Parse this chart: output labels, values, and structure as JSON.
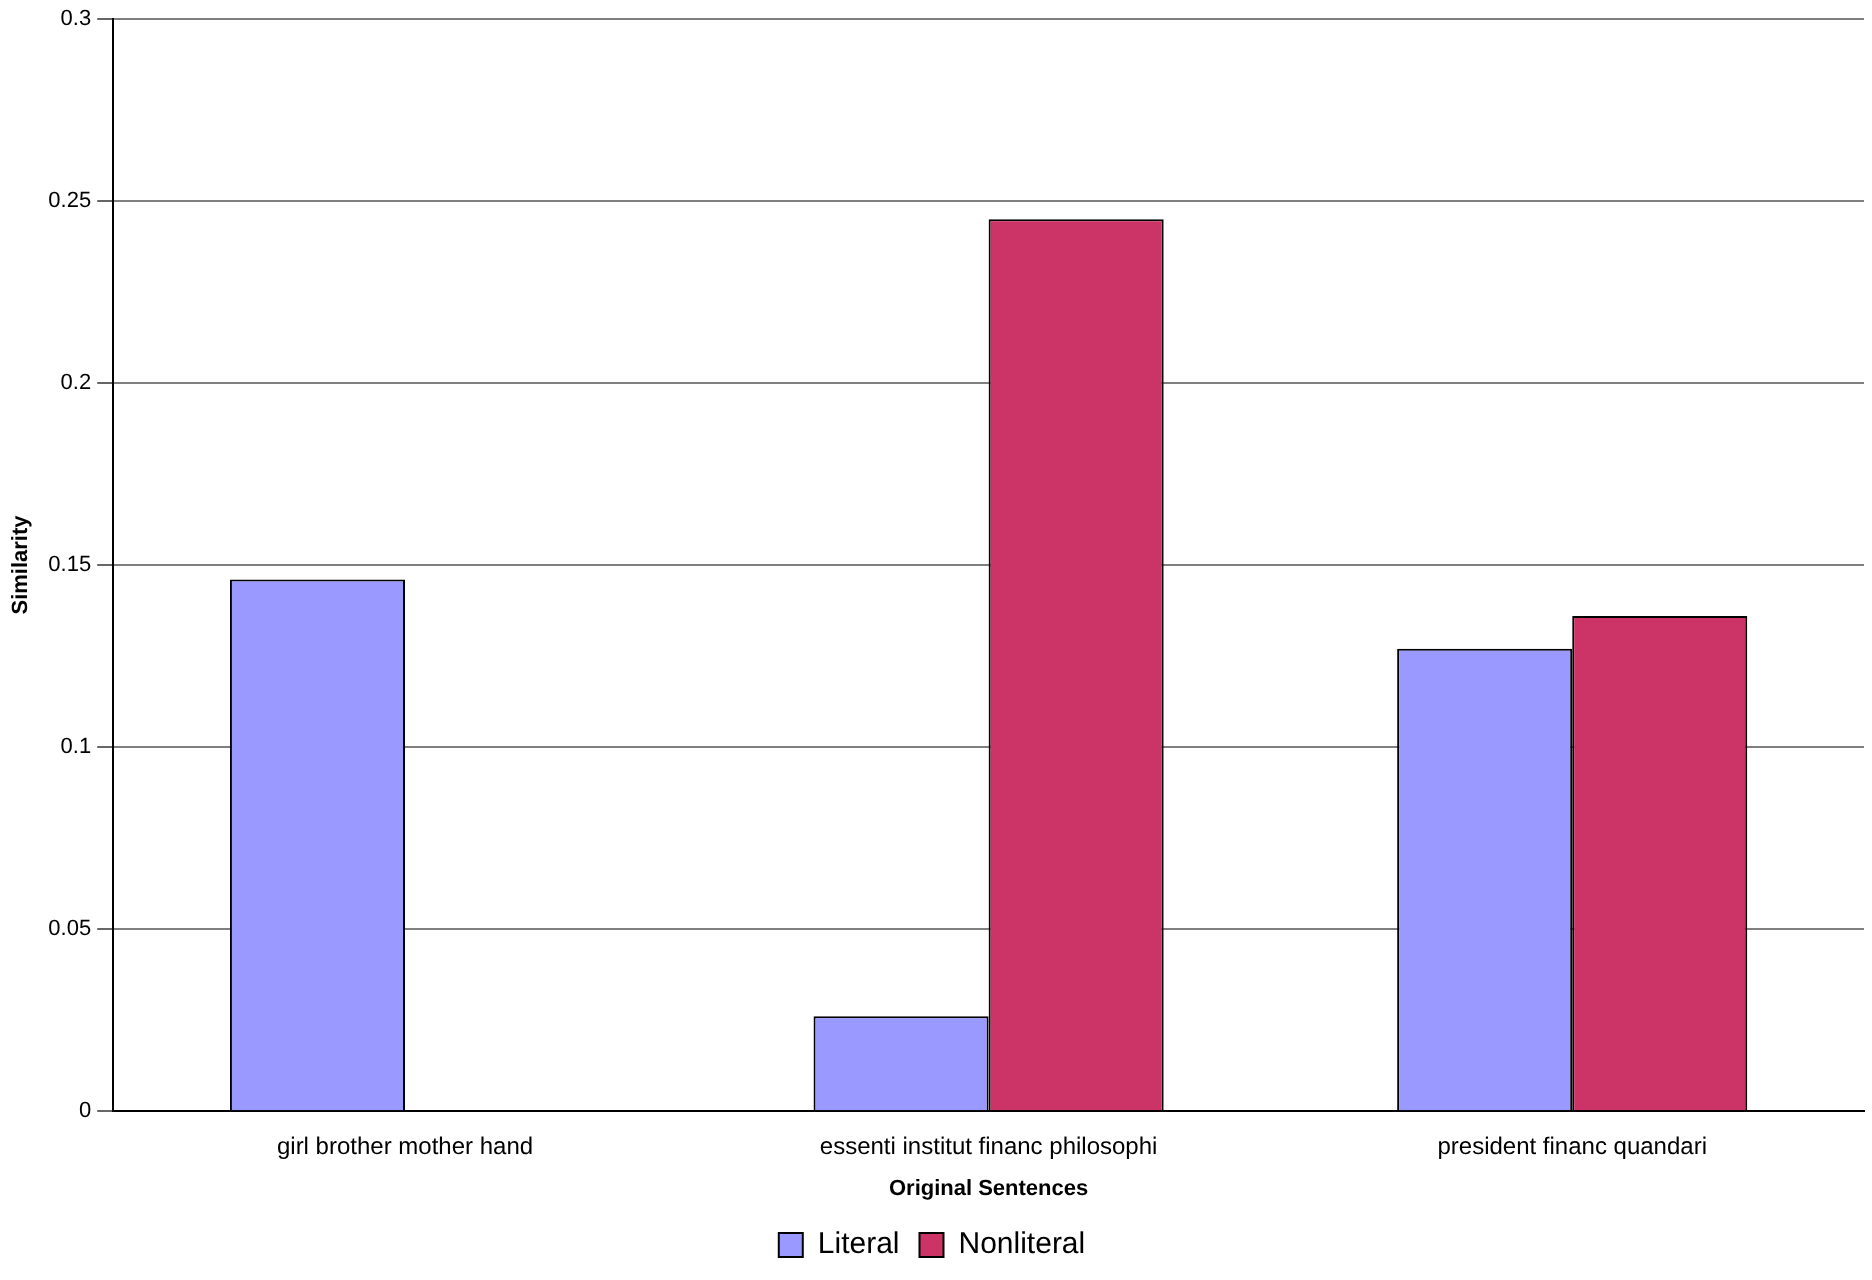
{
  "chart_data": {
    "type": "bar",
    "xlabel": "Original Sentences",
    "ylabel": "Similarity",
    "categories": [
      "girl brother mother hand",
      "essenti institut financ philosophi",
      "president financ quandari"
    ],
    "series": [
      {
        "name": "Literal",
        "color": "#9999ff",
        "values": [
          0.146,
          0.026,
          0.127
        ]
      },
      {
        "name": "Nonliteral",
        "color": "#cc3366",
        "values": [
          null,
          0.245,
          0.136
        ]
      }
    ],
    "ylim": [
      0,
      0.3
    ],
    "yticks": [
      0,
      0.05,
      0.1,
      0.15,
      0.2,
      0.25,
      0.3
    ],
    "grid": "y",
    "legend": "bottom"
  }
}
